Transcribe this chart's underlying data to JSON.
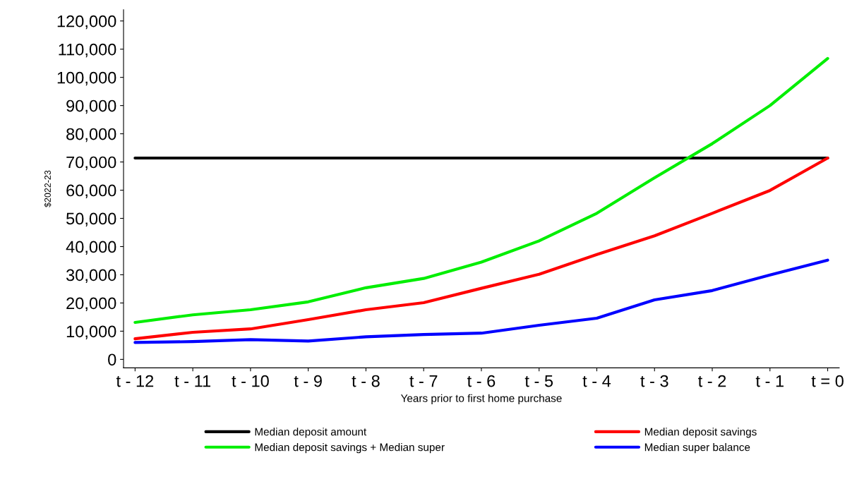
{
  "chart_data": {
    "type": "line",
    "xlabel": "Years prior to first home purchase",
    "ylabel": "$2022-23",
    "categories": [
      "t - 12",
      "t - 11",
      "t - 10",
      "t - 9",
      "t - 8",
      "t - 7",
      "t - 6",
      "t - 5",
      "t - 4",
      "t - 3",
      "t - 2",
      "t - 1",
      "t = 0"
    ],
    "series": [
      {
        "name": "Median deposit amount",
        "color": "#000000",
        "values": [
          71400,
          71400,
          71400,
          71400,
          71400,
          71400,
          71400,
          71400,
          71400,
          71400,
          71400,
          71400,
          71400
        ]
      },
      {
        "name": "Median deposit savings + Median super",
        "color": "#00ee00",
        "values": [
          13100,
          15800,
          17600,
          20400,
          25400,
          28700,
          34500,
          42000,
          51800,
          64400,
          76500,
          90000,
          106700
        ]
      },
      {
        "name": "Median deposit savings",
        "color": "#ff0000",
        "values": [
          7300,
          9600,
          10800,
          14100,
          17600,
          20100,
          25200,
          30200,
          37200,
          43800,
          51800,
          59900,
          71400
        ]
      },
      {
        "name": "Median super balance",
        "color": "#0000ff",
        "values": [
          6000,
          6300,
          7000,
          6500,
          8000,
          8800,
          9300,
          12100,
          14600,
          21100,
          24400,
          29900,
          35200
        ]
      }
    ],
    "ylim": [
      -3000,
      124000
    ],
    "yticks": [
      {
        "value": 0,
        "label": "0"
      },
      {
        "value": 10000,
        "label": "10,000"
      },
      {
        "value": 20000,
        "label": "20,000"
      },
      {
        "value": 30000,
        "label": "30,000"
      },
      {
        "value": 40000,
        "label": "40,000"
      },
      {
        "value": 50000,
        "label": "50,000"
      },
      {
        "value": 60000,
        "label": "60,000"
      },
      {
        "value": 70000,
        "label": "70,000"
      },
      {
        "value": 80000,
        "label": "80,000"
      },
      {
        "value": 90000,
        "label": "90,000"
      },
      {
        "value": 100000,
        "label": "100,000"
      },
      {
        "value": 110000,
        "label": "110,000"
      },
      {
        "value": 120000,
        "label": "120,000"
      }
    ],
    "grid": false,
    "legend": "bottom",
    "marker": "none",
    "line_style": "solid"
  }
}
